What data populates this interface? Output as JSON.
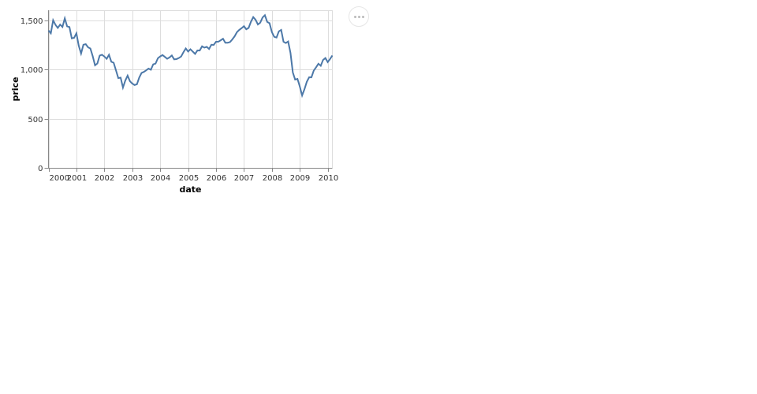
{
  "chart_data": {
    "type": "line",
    "xlabel": "date",
    "ylabel": "price",
    "xlim": [
      "2000-01",
      "2010-03"
    ],
    "ylim": [
      0,
      1600
    ],
    "grid": true,
    "color": "#4c78a8",
    "x_ticks": [
      "2000",
      "2001",
      "2002",
      "2003",
      "2004",
      "2005",
      "2006",
      "2007",
      "2008",
      "2009",
      "2010"
    ],
    "y_ticks": [
      "0",
      "500",
      "1,000",
      "1,500"
    ],
    "x": [
      "2000-01",
      "2000-02",
      "2000-03",
      "2000-04",
      "2000-05",
      "2000-06",
      "2000-07",
      "2000-08",
      "2000-09",
      "2000-10",
      "2000-11",
      "2000-12",
      "2001-01",
      "2001-02",
      "2001-03",
      "2001-04",
      "2001-05",
      "2001-06",
      "2001-07",
      "2001-08",
      "2001-09",
      "2001-10",
      "2001-11",
      "2001-12",
      "2002-01",
      "2002-02",
      "2002-03",
      "2002-04",
      "2002-05",
      "2002-06",
      "2002-07",
      "2002-08",
      "2002-09",
      "2002-10",
      "2002-11",
      "2002-12",
      "2003-01",
      "2003-02",
      "2003-03",
      "2003-04",
      "2003-05",
      "2003-06",
      "2003-07",
      "2003-08",
      "2003-09",
      "2003-10",
      "2003-11",
      "2003-12",
      "2004-01",
      "2004-02",
      "2004-03",
      "2004-04",
      "2004-05",
      "2004-06",
      "2004-07",
      "2004-08",
      "2004-09",
      "2004-10",
      "2004-11",
      "2004-12",
      "2005-01",
      "2005-02",
      "2005-03",
      "2005-04",
      "2005-05",
      "2005-06",
      "2005-07",
      "2005-08",
      "2005-09",
      "2005-10",
      "2005-11",
      "2005-12",
      "2006-01",
      "2006-02",
      "2006-03",
      "2006-04",
      "2006-05",
      "2006-06",
      "2006-07",
      "2006-08",
      "2006-09",
      "2006-10",
      "2006-11",
      "2006-12",
      "2007-01",
      "2007-02",
      "2007-03",
      "2007-04",
      "2007-05",
      "2007-06",
      "2007-07",
      "2007-08",
      "2007-09",
      "2007-10",
      "2007-11",
      "2007-12",
      "2008-01",
      "2008-02",
      "2008-03",
      "2008-04",
      "2008-05",
      "2008-06",
      "2008-07",
      "2008-08",
      "2008-09",
      "2008-10",
      "2008-11",
      "2008-12",
      "2009-01",
      "2009-02",
      "2009-03",
      "2009-04",
      "2009-05",
      "2009-06",
      "2009-07",
      "2009-08",
      "2009-09",
      "2009-10",
      "2009-11",
      "2009-12",
      "2010-01",
      "2010-02",
      "2010-03"
    ],
    "y": [
      1394.46,
      1366.42,
      1498.58,
      1452.43,
      1420.6,
      1454.6,
      1430.83,
      1517.68,
      1436.51,
      1429.4,
      1314.95,
      1320.28,
      1366.01,
      1239.94,
      1160.33,
      1249.46,
      1255.82,
      1224.38,
      1211.23,
      1133.58,
      1040.94,
      1059.78,
      1139.45,
      1148.08,
      1130.2,
      1106.73,
      1147.39,
      1076.92,
      1067.14,
      989.82,
      911.62,
      916.07,
      815.28,
      885.76,
      936.31,
      879.82,
      855.7,
      841.15,
      848.18,
      916.92,
      963.59,
      974.5,
      990.31,
      1008.01,
      995.97,
      1050.71,
      1058.2,
      1111.92,
      1131.13,
      1144.94,
      1126.21,
      1107.3,
      1120.68,
      1140.84,
      1101.72,
      1104.24,
      1114.58,
      1130.2,
      1173.82,
      1211.92,
      1181.27,
      1203.6,
      1180.59,
      1156.85,
      1191.5,
      1191.33,
      1234.18,
      1220.33,
      1228.81,
      1207.01,
      1249.48,
      1248.29,
      1280.08,
      1280.66,
      1294.87,
      1310.61,
      1270.09,
      1270.2,
      1276.66,
      1303.82,
      1335.85,
      1377.94,
      1400.63,
      1418.3,
      1438.24,
      1406.82,
      1420.86,
      1482.37,
      1530.62,
      1503.35,
      1455.27,
      1473.99,
      1526.75,
      1549.38,
      1481.14,
      1468.36,
      1378.55,
      1330.63,
      1322.7,
      1385.59,
      1400.38,
      1280,
      1267.38,
      1282.83,
      1166.36,
      968.75,
      896.24,
      903.25,
      825.88,
      735.09,
      797.87,
      872.81,
      919.14,
      919.32,
      987.48,
      1020.62,
      1057.08,
      1036.19,
      1095.63,
      1115.1,
      1073.87,
      1104.49,
      1140.45
    ]
  },
  "menu": {
    "icon": "ellipsis-icon"
  }
}
